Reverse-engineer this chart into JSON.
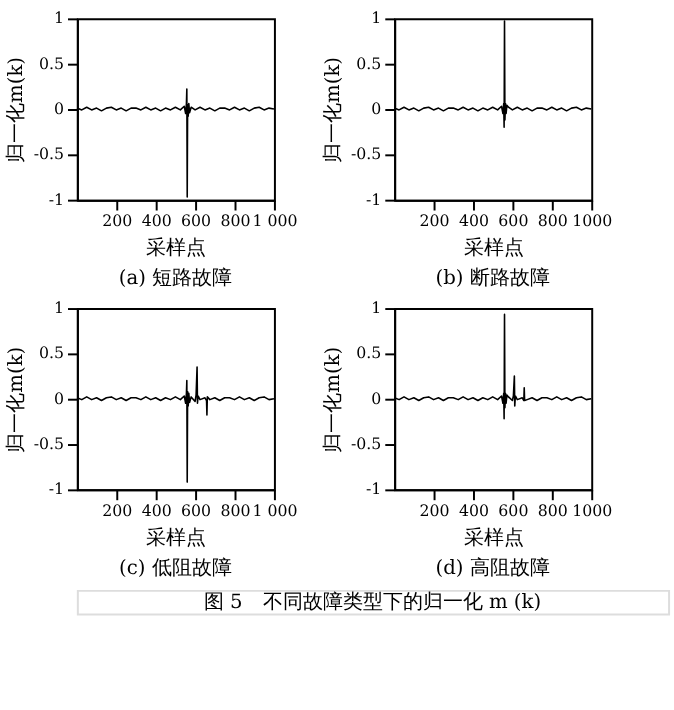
{
  "chart_data": [
    {
      "type": "line",
      "title": "(a) 短路故障",
      "xlabel": "采样点",
      "ylabel": "归一化m(k)",
      "xlim": [
        0,
        1000
      ],
      "ylim": [
        -1,
        1
      ],
      "xticks": [
        200,
        400,
        600,
        800,
        {
          "value": 1000,
          "label": "1 000"
        }
      ],
      "yticks": [
        -1,
        -0.5,
        0,
        0.5,
        1
      ],
      "grid": false,
      "legend": false,
      "series": [
        {
          "color": "#000000",
          "x": [
            1,
            25,
            50,
            75,
            100,
            125,
            150,
            175,
            200,
            225,
            250,
            275,
            300,
            325,
            350,
            375,
            400,
            425,
            450,
            475,
            500,
            525,
            545,
            552,
            556,
            558,
            560,
            562,
            565,
            568,
            572,
            580,
            600,
            625,
            650,
            675,
            700,
            725,
            750,
            775,
            800,
            825,
            850,
            875,
            900,
            925,
            950,
            975,
            1000
          ],
          "values": [
            0.01,
            -0.01,
            0.02,
            -0.01,
            0.01,
            -0.02,
            0.01,
            0.02,
            -0.01,
            0.01,
            -0.02,
            0.01,
            0.01,
            -0.01,
            0.02,
            -0.01,
            0.01,
            -0.02,
            0.01,
            -0.01,
            0.02,
            -0.01,
            0.03,
            -0.05,
            0.06,
            0.22,
            -0.97,
            0.05,
            -0.08,
            0.06,
            -0.04,
            0.02,
            -0.01,
            0.02,
            -0.01,
            0.01,
            -0.02,
            0.01,
            0.01,
            -0.01,
            0.02,
            -0.01,
            0.01,
            -0.02,
            0.01,
            0.02,
            -0.01,
            0.01,
            0.0
          ]
        }
      ]
    },
    {
      "type": "line",
      "title": "(b) 断路故障",
      "xlabel": "采样点",
      "ylabel": "归一化m(k)",
      "xlim": [
        0,
        1000
      ],
      "ylim": [
        -1,
        1
      ],
      "xticks": [
        200,
        400,
        600,
        800,
        1000
      ],
      "yticks": [
        -1,
        -0.5,
        0,
        0.5,
        1
      ],
      "grid": false,
      "legend": false,
      "series": [
        {
          "color": "#000000",
          "x": [
            1,
            25,
            50,
            75,
            100,
            125,
            150,
            175,
            200,
            225,
            250,
            275,
            300,
            325,
            350,
            375,
            400,
            425,
            450,
            475,
            500,
            525,
            545,
            552,
            556,
            558,
            560,
            562,
            565,
            568,
            572,
            580,
            600,
            625,
            650,
            675,
            700,
            725,
            750,
            775,
            800,
            825,
            850,
            875,
            900,
            925,
            950,
            975,
            1000
          ],
          "values": [
            0.01,
            -0.01,
            0.02,
            -0.01,
            0.01,
            -0.02,
            0.01,
            0.02,
            -0.01,
            0.01,
            -0.02,
            0.01,
            0.01,
            -0.01,
            0.02,
            -0.01,
            0.01,
            -0.02,
            0.01,
            -0.01,
            0.02,
            -0.01,
            0.03,
            -0.05,
            0.06,
            -0.2,
            0.97,
            -0.12,
            0.06,
            -0.05,
            0.04,
            0.02,
            -0.01,
            0.02,
            -0.01,
            0.01,
            -0.02,
            0.01,
            0.01,
            -0.01,
            0.02,
            -0.01,
            0.01,
            -0.02,
            0.01,
            0.02,
            -0.01,
            0.01,
            0.0
          ]
        }
      ]
    },
    {
      "type": "line",
      "title": "(c) 低阻故障",
      "xlabel": "采样点",
      "ylabel": "归一化m(k)",
      "xlim": [
        0,
        1000
      ],
      "ylim": [
        -1,
        1
      ],
      "xticks": [
        200,
        400,
        600,
        800,
        {
          "value": 1000,
          "label": "1 000"
        }
      ],
      "yticks": [
        -1,
        -0.5,
        0,
        0.5,
        1
      ],
      "grid": false,
      "legend": false,
      "series": [
        {
          "color": "#000000",
          "x": [
            1,
            25,
            50,
            75,
            100,
            125,
            150,
            175,
            200,
            225,
            250,
            275,
            300,
            325,
            350,
            375,
            400,
            425,
            450,
            475,
            500,
            525,
            545,
            552,
            556,
            558,
            560,
            562,
            565,
            568,
            572,
            580,
            600,
            605,
            610,
            612,
            615,
            625,
            650,
            658,
            660,
            662,
            675,
            700,
            725,
            750,
            775,
            800,
            825,
            850,
            875,
            900,
            925,
            950,
            975,
            1000
          ],
          "values": [
            0.01,
            -0.01,
            0.02,
            -0.01,
            0.01,
            -0.02,
            0.01,
            0.02,
            -0.01,
            0.01,
            -0.02,
            0.01,
            0.01,
            -0.01,
            0.02,
            -0.01,
            0.01,
            -0.02,
            0.01,
            -0.01,
            0.02,
            -0.01,
            0.03,
            -0.05,
            0.06,
            0.2,
            -0.92,
            0.08,
            -0.08,
            0.06,
            -0.04,
            0.02,
            -0.03,
            0.04,
            0.35,
            -0.05,
            0.03,
            -0.01,
            0.01,
            -0.02,
            -0.18,
            0.02,
            -0.01,
            0.01,
            -0.02,
            0.01,
            0.01,
            -0.01,
            0.02,
            -0.01,
            0.01,
            -0.02,
            0.01,
            0.02,
            -0.01,
            0.0
          ]
        }
      ]
    },
    {
      "type": "line",
      "title": "(d) 高阻故障",
      "xlabel": "采样点",
      "ylabel": "归一化m(k)",
      "xlim": [
        0,
        1000
      ],
      "ylim": [
        -1,
        1
      ],
      "xticks": [
        200,
        400,
        600,
        800,
        1000
      ],
      "yticks": [
        -1,
        -0.5,
        0,
        0.5,
        1
      ],
      "grid": false,
      "legend": false,
      "series": [
        {
          "color": "#000000",
          "x": [
            1,
            25,
            50,
            75,
            100,
            125,
            150,
            175,
            200,
            225,
            250,
            275,
            300,
            325,
            350,
            375,
            400,
            425,
            450,
            475,
            500,
            525,
            545,
            552,
            556,
            558,
            560,
            562,
            565,
            568,
            572,
            580,
            600,
            605,
            610,
            612,
            615,
            625,
            650,
            658,
            660,
            662,
            675,
            700,
            725,
            750,
            775,
            800,
            825,
            850,
            875,
            900,
            925,
            950,
            975,
            1000
          ],
          "values": [
            0.01,
            -0.01,
            0.02,
            -0.01,
            0.01,
            -0.02,
            0.01,
            0.02,
            -0.01,
            0.01,
            -0.02,
            0.01,
            0.01,
            -0.01,
            0.02,
            -0.01,
            0.01,
            -0.02,
            0.01,
            -0.01,
            0.02,
            -0.01,
            0.03,
            -0.05,
            0.06,
            -0.22,
            0.93,
            -0.1,
            0.06,
            -0.05,
            0.04,
            0.02,
            -0.02,
            0.03,
            0.25,
            -0.08,
            0.03,
            -0.01,
            0.01,
            -0.02,
            0.12,
            -0.02,
            -0.01,
            0.01,
            -0.02,
            0.01,
            0.01,
            -0.01,
            0.02,
            -0.01,
            0.01,
            -0.02,
            0.01,
            0.02,
            -0.01,
            0.0
          ]
        }
      ]
    },
    {
      "type": "other",
      "title": "图 5　不同故障类型下的归一化 m (k)"
    }
  ]
}
